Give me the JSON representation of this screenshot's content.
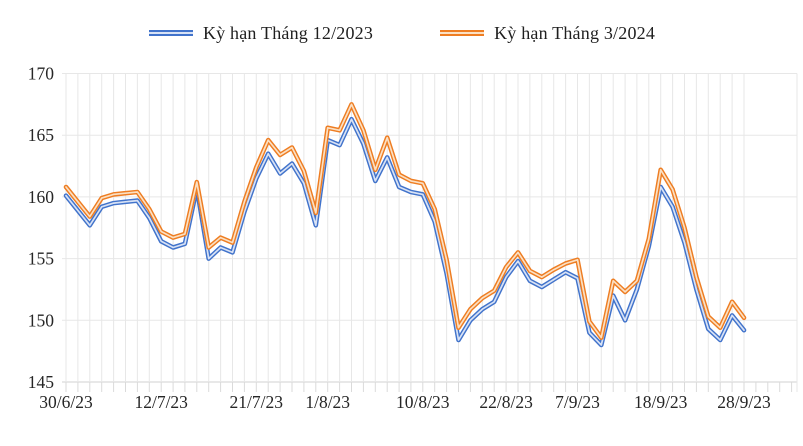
{
  "legend": {
    "items": [
      {
        "label": "Kỳ hạn Tháng 12/2023"
      },
      {
        "label": "Kỳ hạn Tháng 3/2024"
      }
    ]
  },
  "colors": {
    "series1": "#4173CB",
    "series1_core": "#D8E2F5",
    "series2": "#EE7D22",
    "series2_core": "#FBE0C3",
    "gridline": "#E7E7E7",
    "axis_line": "#D2D2D2",
    "tick": "#DADADA",
    "label_text": "#262626"
  },
  "chart_data": {
    "type": "line",
    "title": "",
    "xlabel": "",
    "ylabel": "",
    "ylim": [
      145,
      170
    ],
    "y_ticks": [
      145,
      150,
      155,
      160,
      165,
      170
    ],
    "grid": "both",
    "legend_position": "top",
    "n_points": 58,
    "x_ticks": [
      {
        "label": "30/6/23",
        "index": 0
      },
      {
        "label": "12/7/23",
        "index": 8
      },
      {
        "label": "21/7/23",
        "index": 16
      },
      {
        "label": "1/8/23",
        "index": 22
      },
      {
        "label": "10/8/23",
        "index": 30
      },
      {
        "label": "22/8/23",
        "index": 37
      },
      {
        "label": "7/9/23",
        "index": 43
      },
      {
        "label": "18/9/23",
        "index": 50
      },
      {
        "label": "28/9/23",
        "index": 57
      }
    ],
    "series": [
      {
        "name": "Kỳ hạn Tháng 12/2023",
        "color": "#4173CB",
        "core_color": "#D8E2F5",
        "values": [
          160.1,
          158.9,
          157.7,
          159.2,
          159.5,
          159.6,
          159.7,
          158.3,
          156.4,
          155.9,
          156.2,
          160.7,
          155.0,
          155.9,
          155.5,
          158.8,
          161.5,
          163.5,
          161.9,
          162.7,
          161.1,
          157.7,
          164.6,
          164.2,
          166.3,
          164.3,
          161.3,
          163.2,
          160.8,
          160.4,
          160.2,
          158.0,
          153.8,
          148.4,
          150.0,
          150.9,
          151.5,
          153.5,
          154.8,
          153.2,
          152.7,
          153.3,
          153.9,
          153.4,
          149.0,
          148.0,
          152.0,
          150.0,
          152.5,
          156.0,
          160.8,
          159.2,
          156.3,
          152.5,
          149.3,
          148.4,
          150.4,
          149.2
        ]
      },
      {
        "name": "Kỳ hạn Tháng 3/2024",
        "color": "#EE7D22",
        "core_color": "#FBE0C3",
        "values": [
          160.8,
          159.6,
          158.4,
          159.9,
          160.2,
          160.3,
          160.4,
          159.0,
          157.2,
          156.7,
          157.0,
          161.2,
          155.9,
          156.7,
          156.3,
          159.6,
          162.4,
          164.6,
          163.4,
          164.0,
          162.1,
          158.7,
          165.6,
          165.4,
          167.5,
          165.4,
          162.2,
          164.8,
          161.8,
          161.3,
          161.1,
          159.0,
          154.9,
          149.4,
          150.9,
          151.8,
          152.4,
          154.3,
          155.5,
          154.0,
          153.5,
          154.1,
          154.6,
          154.9,
          149.9,
          148.6,
          153.2,
          152.3,
          153.2,
          156.6,
          162.2,
          160.6,
          157.5,
          153.5,
          150.3,
          149.4,
          151.5,
          150.2
        ]
      }
    ]
  }
}
